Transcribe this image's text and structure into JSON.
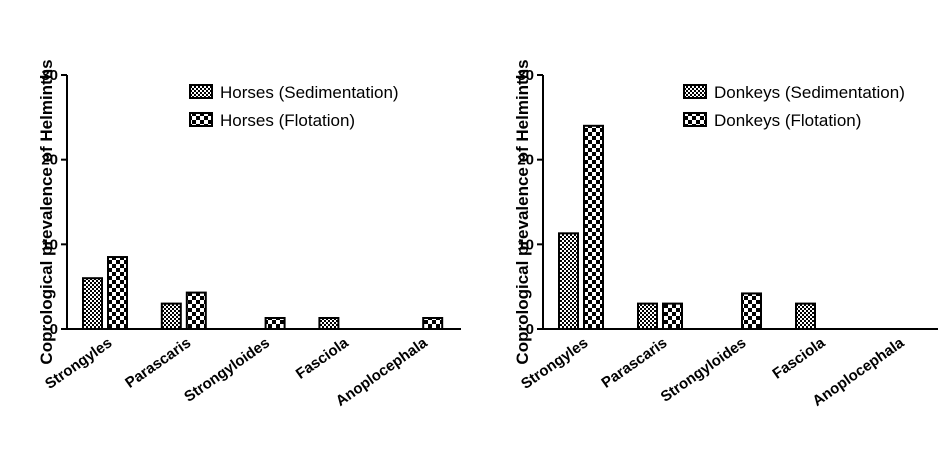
{
  "chart_data": [
    {
      "type": "bar",
      "title": "",
      "xlabel": "",
      "ylabel": "Coprological prevalence of Helminths",
      "ylim": [
        0,
        30
      ],
      "yticks": [
        0,
        10,
        20,
        30
      ],
      "categories": [
        "Strongyles",
        "Parascaris",
        "Strongyloides",
        "Fasciola",
        "Anoplocephala"
      ],
      "series": [
        {
          "name": "Horses (Sedimentation)",
          "values": [
            6,
            3,
            0,
            1.3,
            0
          ],
          "pattern": "checker-fine"
        },
        {
          "name": "Horses (Flotation)",
          "values": [
            8.5,
            4.3,
            1.3,
            0,
            1.3
          ],
          "pattern": "checker-coarse"
        }
      ],
      "legend": "top-right",
      "grid": false
    },
    {
      "type": "bar",
      "title": "",
      "xlabel": "",
      "ylabel": "Coprological prevalence of Helminths",
      "ylim": [
        0,
        30
      ],
      "yticks": [
        0,
        10,
        20,
        30
      ],
      "categories": [
        "Strongyles",
        "Parascaris",
        "Strongyloides",
        "Fasciola",
        "Anoplocephala"
      ],
      "series": [
        {
          "name": "Donkeys (Sedimentation)",
          "values": [
            11.3,
            3,
            0,
            3,
            0
          ],
          "pattern": "checker-fine"
        },
        {
          "name": "Donkeys (Flotation)",
          "values": [
            24,
            3,
            4.2,
            0,
            0
          ],
          "pattern": "checker-coarse"
        }
      ],
      "legend": "top-right",
      "grid": false
    }
  ]
}
